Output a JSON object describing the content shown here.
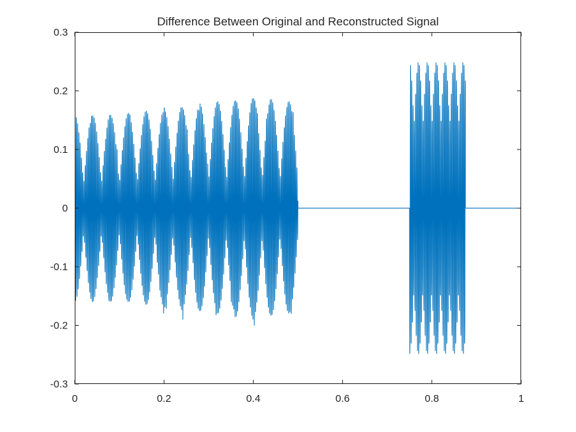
{
  "chart_data": {
    "type": "line",
    "title": "Difference Between Original and Reconstructed Signal",
    "xlabel": "",
    "ylabel": "",
    "xlim": [
      0,
      1
    ],
    "ylim": [
      -0.3,
      0.3
    ],
    "xticks": [
      0,
      0.2,
      0.4,
      0.6,
      0.8,
      1
    ],
    "xtick_labels": [
      "0",
      "0.2",
      "0.4",
      "0.6",
      "0.8",
      "1"
    ],
    "yticks": [
      -0.3,
      -0.2,
      -0.1,
      0,
      0.1,
      0.2,
      0.3
    ],
    "ytick_labels": [
      "-0.3",
      "-0.2",
      "-0.1",
      "0",
      "0.1",
      "0.2",
      "0.3"
    ],
    "grid": false,
    "box": true,
    "series": [
      {
        "color": "#0072BD",
        "segments": [
          {
            "x_start": 0,
            "x_end": 0.5,
            "description_envelope": [
              [
                0,
                0.16
              ],
              [
                0.1,
                0.16
              ],
              [
                0.2,
                0.17
              ],
              [
                0.3,
                0.18
              ],
              [
                0.4,
                0.19
              ],
              [
                0.5,
                0.18
              ]
            ],
            "fine_frequency": 350,
            "beat_frequency": 25
          },
          {
            "x_start": 0.5,
            "x_end": 0.75,
            "constant": 0
          },
          {
            "x_start": 0.75,
            "x_end": 0.875,
            "amplitude": 0.25,
            "fine_frequency": 350,
            "beat_frequency": 50
          },
          {
            "x_start": 0.875,
            "x_end": 1,
            "constant": 0
          }
        ]
      }
    ]
  }
}
